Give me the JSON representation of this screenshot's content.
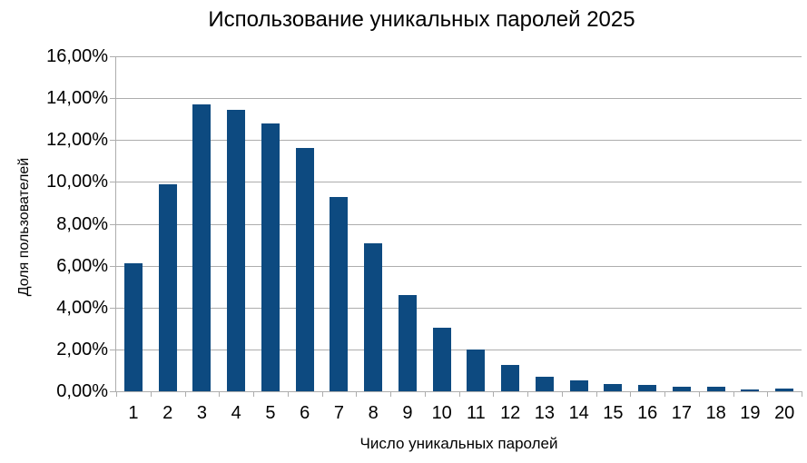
{
  "chart_data": {
    "type": "bar",
    "title": "Использование уникальных паролей 2025",
    "xlabel": "Число уникальных паролей",
    "ylabel": "Доля пользователей",
    "categories": [
      "1",
      "2",
      "3",
      "4",
      "5",
      "6",
      "7",
      "8",
      "9",
      "10",
      "11",
      "12",
      "13",
      "14",
      "15",
      "16",
      "17",
      "18",
      "19",
      "20"
    ],
    "values": [
      6.1,
      9.9,
      13.7,
      13.45,
      12.8,
      11.6,
      9.3,
      7.05,
      4.6,
      3.05,
      2.0,
      1.25,
      0.7,
      0.5,
      0.35,
      0.3,
      0.22,
      0.2,
      0.1,
      0.15
    ],
    "unit": "%",
    "ylim": [
      0,
      16
    ],
    "y_tick_step": 2,
    "y_tick_labels": [
      "0,00%",
      "2,00%",
      "4,00%",
      "6,00%",
      "8,00%",
      "10,00%",
      "12,00%",
      "14,00%",
      "16,00%"
    ],
    "grid": true,
    "legend": false,
    "bar_color": "#0d4a80",
    "grid_color": "#adadad",
    "text_color": "#000000"
  }
}
